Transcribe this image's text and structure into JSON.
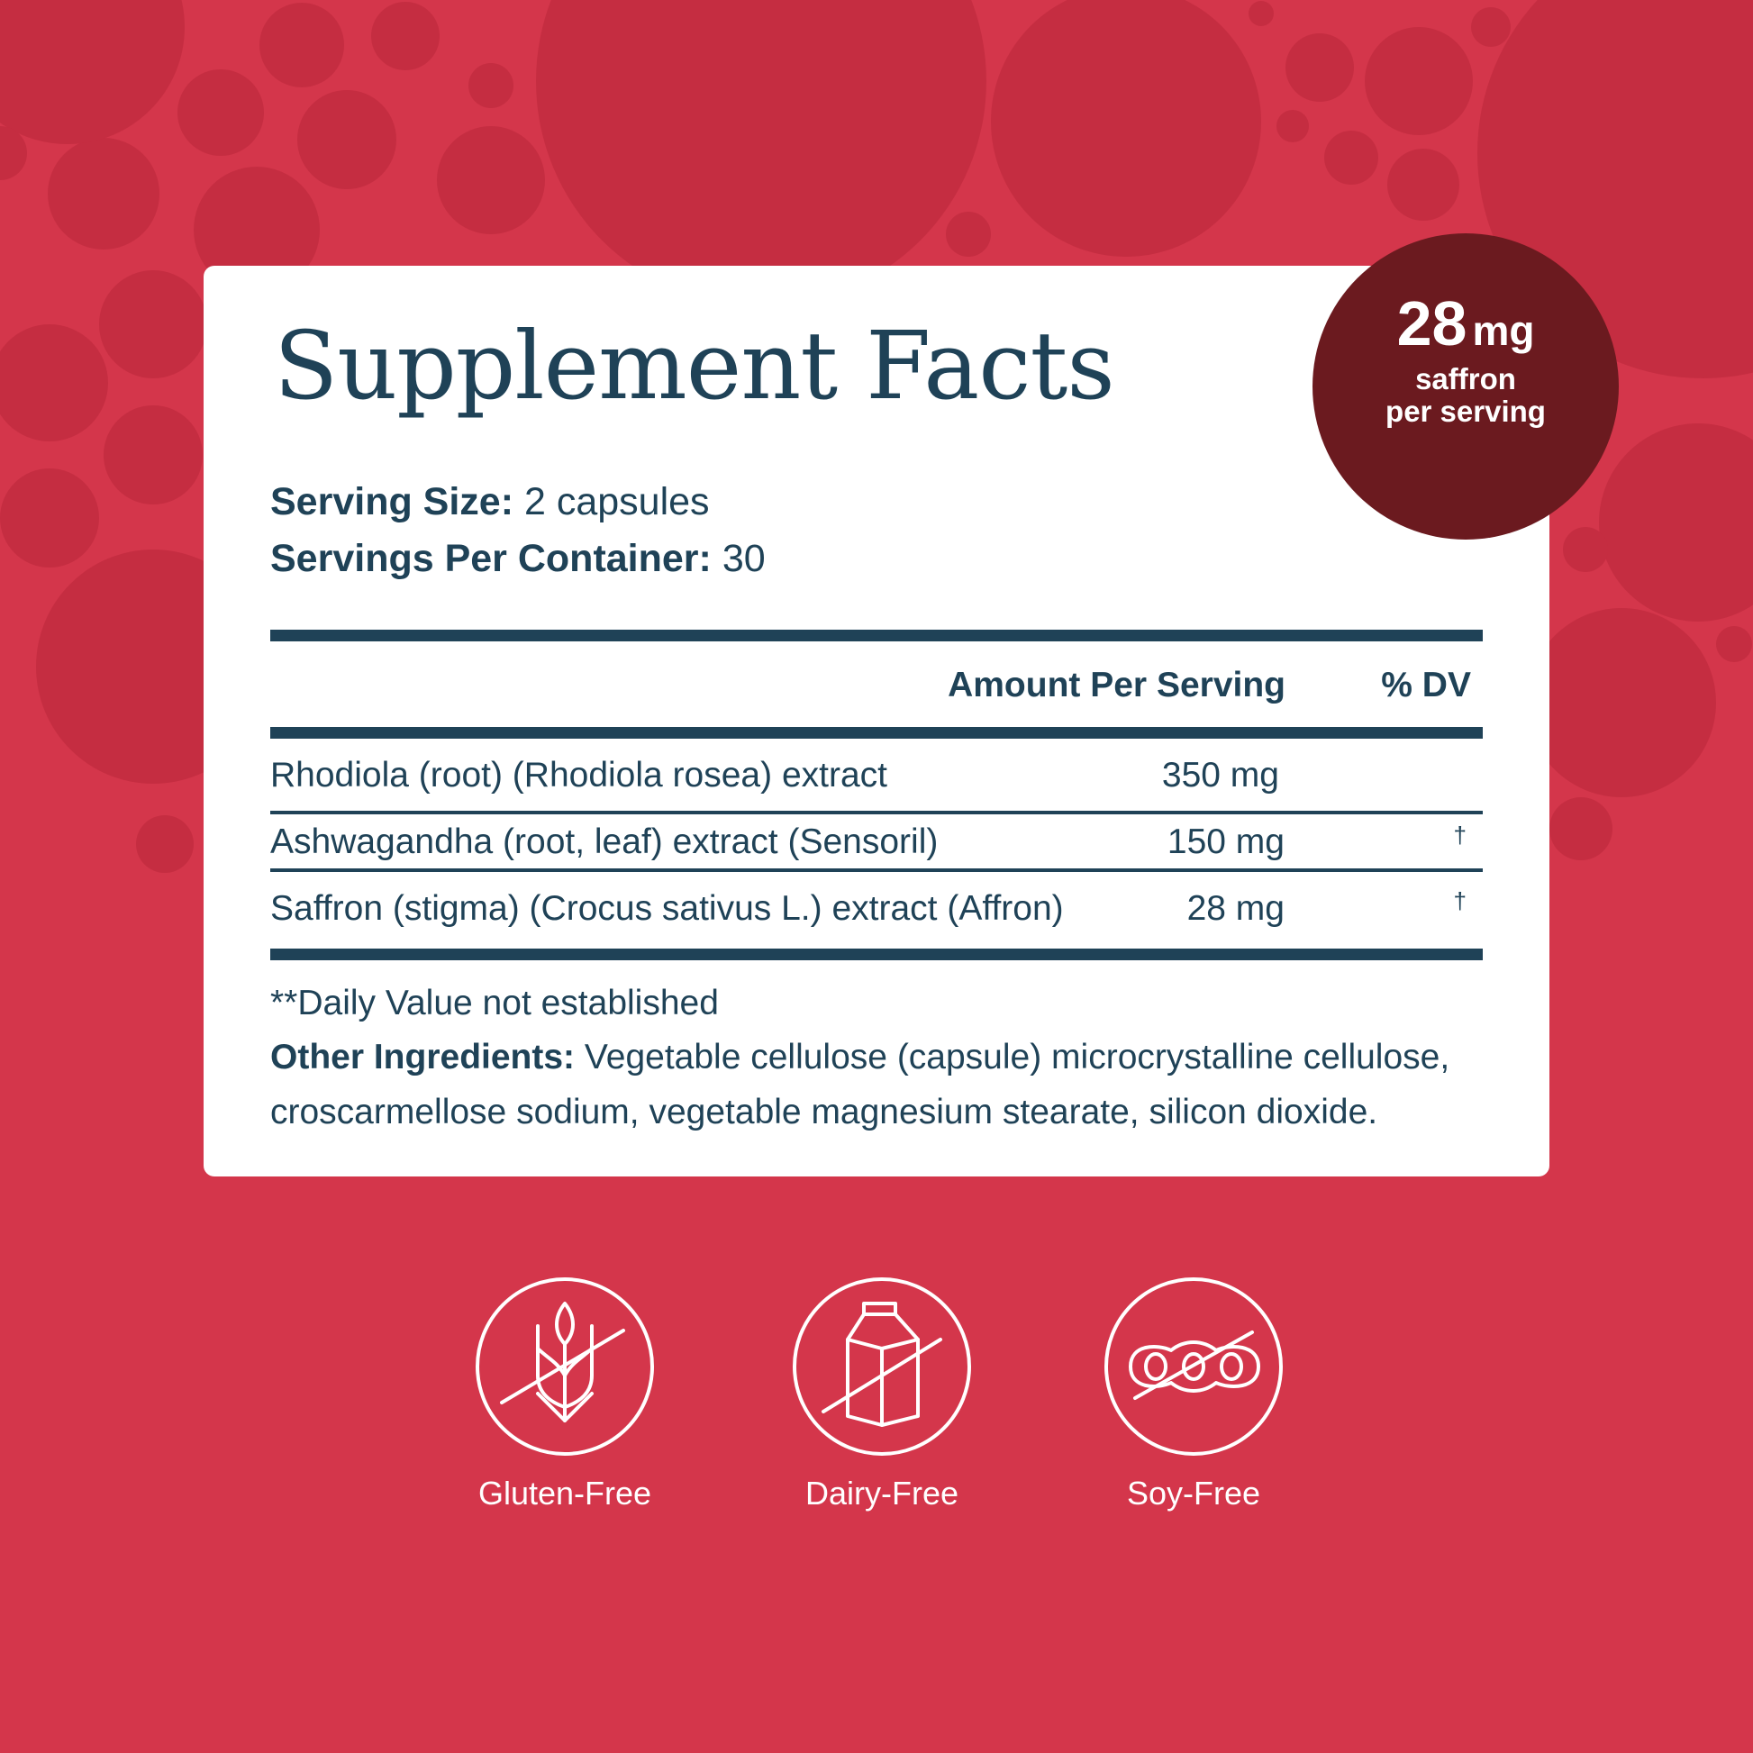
{
  "colors": {
    "background": "#d4364b",
    "bubble": "#c22b3f",
    "text": "#1f4257",
    "badge": "#6b1a1f"
  },
  "card": {
    "title": "Supplement Facts",
    "serving_size_label": "Serving Size:",
    "serving_size_value": "2 capsules",
    "servings_label": "Servings Per Container:",
    "servings_value": "30",
    "table": {
      "headers": [
        "Amount Per Serving",
        "% DV"
      ],
      "rows": [
        {
          "name": "Rhodiola (root) (Rhodiola rosea) extract",
          "amount": "350 mg",
          "dv": ""
        },
        {
          "name": "Ashwagandha (root, leaf) extract (Sensoril)",
          "amount": "150 mg",
          "dv": "†"
        },
        {
          "name": "Saffron (stigma) (Crocus sativus L.) extract (Affron)",
          "amount": "28 mg",
          "dv": "†"
        }
      ]
    },
    "note": "**Daily Value not established",
    "other_label": "Other Ingredients:",
    "other_line1": "Vegetable cellulose (capsule) microcrystalline cellulose,",
    "other_line2": "croscarmellose sodium, vegetable magnesium stearate, silicon dioxide."
  },
  "badge": {
    "number": "28",
    "unit": "mg",
    "line1": "saffron",
    "line2": "per serving"
  },
  "features": [
    {
      "label": "Gluten-Free",
      "icon": "wheat-crossed-icon"
    },
    {
      "label": "Dairy-Free",
      "icon": "milk-carton-crossed-icon"
    },
    {
      "label": "Soy-Free",
      "icon": "soybean-crossed-icon"
    }
  ]
}
